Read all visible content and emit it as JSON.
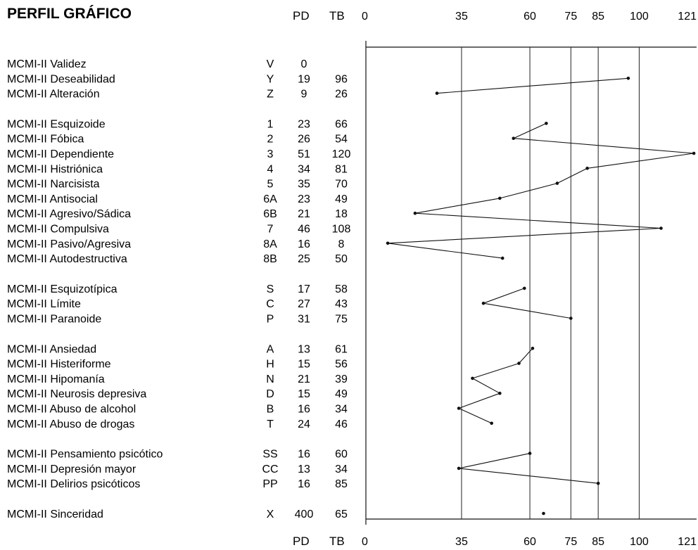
{
  "title": "PERFIL GRÁFICO",
  "header": {
    "pd": "PD",
    "tb": "TB"
  },
  "footer": {
    "pd": "PD",
    "tb": "TB"
  },
  "chart_data": {
    "type": "line",
    "title": "PERFIL GRÁFICO",
    "xlim": [
      0,
      121
    ],
    "x_ticks": [
      0,
      35,
      60,
      75,
      85,
      100,
      121
    ],
    "x_ticks_reference_lines": [
      35,
      60,
      75,
      85,
      100
    ],
    "groups": [
      [
        {
          "name": "MCMI-II Validez",
          "code": "V",
          "pd": "0",
          "tb": ""
        },
        {
          "name": "MCMI-II Deseabilidad",
          "code": "Y",
          "pd": "19",
          "tb": "96"
        },
        {
          "name": "MCMI-II Alteración",
          "code": "Z",
          "pd": "9",
          "tb": "26"
        }
      ],
      [
        {
          "name": "MCMI-II Esquizoide",
          "code": "1",
          "pd": "23",
          "tb": "66"
        },
        {
          "name": "MCMI-II Fóbica",
          "code": "2",
          "pd": "26",
          "tb": "54"
        },
        {
          "name": "MCMI-II Dependiente",
          "code": "3",
          "pd": "51",
          "tb": "120"
        },
        {
          "name": "MCMI-II Histriónica",
          "code": "4",
          "pd": "34",
          "tb": "81"
        },
        {
          "name": "MCMI-II Narcisista",
          "code": "5",
          "pd": "35",
          "tb": "70"
        },
        {
          "name": "MCMI-II Antisocial",
          "code": "6A",
          "pd": "23",
          "tb": "49"
        },
        {
          "name": "MCMI-II Agresivo/Sádica",
          "code": "6B",
          "pd": "21",
          "tb": "18"
        },
        {
          "name": "MCMI-II Compulsiva",
          "code": "7",
          "pd": "46",
          "tb": "108"
        },
        {
          "name": "MCMI-II Pasivo/Agresiva",
          "code": "8A",
          "pd": "16",
          "tb": "8"
        },
        {
          "name": "MCMI-II Autodestructiva",
          "code": "8B",
          "pd": "25",
          "tb": "50"
        }
      ],
      [
        {
          "name": "MCMI-II Esquizotípica",
          "code": "S",
          "pd": "17",
          "tb": "58"
        },
        {
          "name": "MCMI-II Límite",
          "code": "C",
          "pd": "27",
          "tb": "43"
        },
        {
          "name": "MCMI-II Paranoide",
          "code": "P",
          "pd": "31",
          "tb": "75"
        }
      ],
      [
        {
          "name": "MCMI-II Ansiedad",
          "code": "A",
          "pd": "13",
          "tb": "61"
        },
        {
          "name": "MCMI-II Histeriforme",
          "code": "H",
          "pd": "15",
          "tb": "56"
        },
        {
          "name": "MCMI-II Hipomanía",
          "code": "N",
          "pd": "21",
          "tb": "39"
        },
        {
          "name": "MCMI-II Neurosis depresiva",
          "code": "D",
          "pd": "15",
          "tb": "49"
        },
        {
          "name": "MCMI-II Abuso de alcohol",
          "code": "B",
          "pd": "16",
          "tb": "34"
        },
        {
          "name": "MCMI-II Abuso de drogas",
          "code": "T",
          "pd": "24",
          "tb": "46"
        }
      ],
      [
        {
          "name": "MCMI-II Pensamiento psicótico",
          "code": "SS",
          "pd": "16",
          "tb": "60"
        },
        {
          "name": "MCMI-II Depresión mayor",
          "code": "CC",
          "pd": "13",
          "tb": "34"
        },
        {
          "name": "MCMI-II Delirios psicóticos",
          "code": "PP",
          "pd": "16",
          "tb": "85"
        }
      ],
      [
        {
          "name": "MCMI-II Sinceridad",
          "code": "X",
          "pd": "400",
          "tb": "65"
        }
      ]
    ]
  }
}
